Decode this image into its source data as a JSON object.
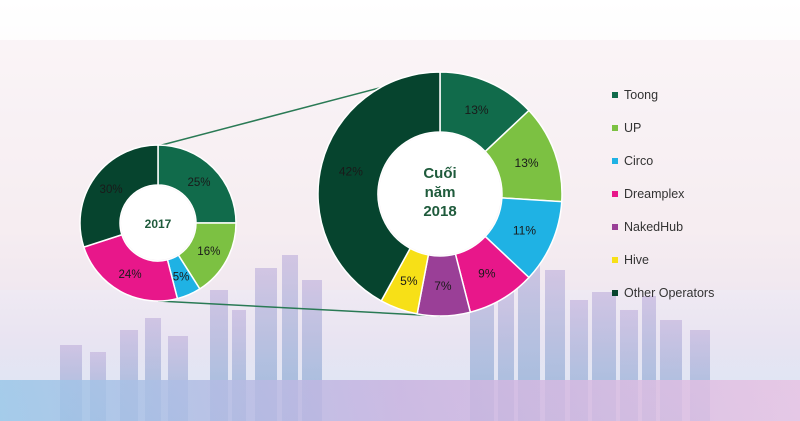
{
  "colors": {
    "Toong": "#116b4b",
    "UP": "#7cc142",
    "Circo": "#1fb2e4",
    "Dreamplex": "#e8178a",
    "NakedHub": "#9a3f97",
    "Hive": "#f7e017",
    "Other Operators": "#06442e",
    "inner_text": "#1f5b3c",
    "connector": "#2a7a55"
  },
  "legend": [
    "Toong",
    "UP",
    "Circo",
    "Dreamplex",
    "NakedHub",
    "Hive",
    "Other Operators"
  ],
  "chart_data": [
    {
      "type": "pie",
      "center_label": "2017",
      "slices": [
        {
          "name": "Toong",
          "value": 25,
          "label": "25%"
        },
        {
          "name": "UP",
          "value": 16,
          "label": "16%"
        },
        {
          "name": "Circo",
          "value": 5,
          "label": "5%"
        },
        {
          "name": "Dreamplex",
          "value": 24,
          "label": "24%"
        },
        {
          "name": "Other Operators",
          "value": 30,
          "label": "30%"
        }
      ]
    },
    {
      "type": "pie",
      "center_label_lines": [
        "Cuối",
        "năm",
        "2018"
      ],
      "slices": [
        {
          "name": "Toong",
          "value": 13,
          "label": "13%"
        },
        {
          "name": "UP",
          "value": 13,
          "label": "13%"
        },
        {
          "name": "Circo",
          "value": 11,
          "label": "11%"
        },
        {
          "name": "Dreamplex",
          "value": 9,
          "label": "9%"
        },
        {
          "name": "NakedHub",
          "value": 7,
          "label": "7%"
        },
        {
          "name": "Hive",
          "value": 5,
          "label": "5%"
        },
        {
          "name": "Other Operators",
          "value": 42,
          "label": "42%"
        }
      ]
    }
  ]
}
